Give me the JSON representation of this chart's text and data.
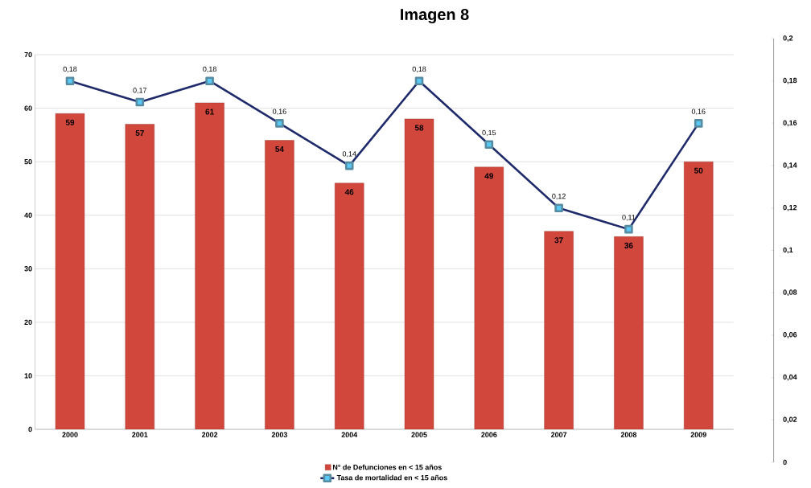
{
  "chart_data": {
    "type": "bar",
    "title": "Imagen 8",
    "categories": [
      "2000",
      "2001",
      "2002",
      "2003",
      "2004",
      "2005",
      "2006",
      "2007",
      "2008",
      "2009"
    ],
    "series": [
      {
        "name": "N° de Defunciones en <  15 años",
        "color": "#d2473c",
        "values": [
          59,
          57,
          61,
          54,
          46,
          58,
          49,
          37,
          36,
          50
        ],
        "value_labels": [
          "59",
          "57",
          "61",
          "54",
          "46",
          "58",
          "49",
          "37",
          "36",
          "50"
        ]
      },
      {
        "name": "Tasa de mortalidad en < 15 años",
        "type": "line",
        "axis": "y2",
        "color": "#1f2a6b",
        "marker": "square",
        "line_style": "solid",
        "values": [
          0.18,
          0.17,
          0.18,
          0.16,
          0.14,
          0.18,
          0.15,
          0.12,
          0.11,
          0.16
        ],
        "value_labels": [
          "0,18",
          "0,17",
          "0,18",
          "0,16",
          "0,14",
          "0,18",
          "0,15",
          "0,12",
          "0,11",
          "0,16"
        ]
      }
    ],
    "ylim": [
      0,
      70
    ],
    "yticks": [
      0,
      10,
      20,
      30,
      40,
      50,
      60,
      70
    ],
    "y2lim": [
      0,
      0.2
    ],
    "y2ticks": [
      {
        "value": 0,
        "label": "0"
      },
      {
        "value": 0.02,
        "label": "0,02"
      },
      {
        "value": 0.04,
        "label": "0,04"
      },
      {
        "value": 0.06,
        "label": "0,06"
      },
      {
        "value": 0.08,
        "label": "0,08"
      },
      {
        "value": 0.1,
        "label": "0,1"
      },
      {
        "value": 0.12,
        "label": "0,12"
      },
      {
        "value": 0.14,
        "label": "0,14"
      },
      {
        "value": 0.16,
        "label": "0,16"
      },
      {
        "value": 0.18,
        "label": "0,18"
      },
      {
        "value": 0.2,
        "label": "0,2"
      }
    ],
    "grid": "y",
    "legend": "bottom"
  }
}
